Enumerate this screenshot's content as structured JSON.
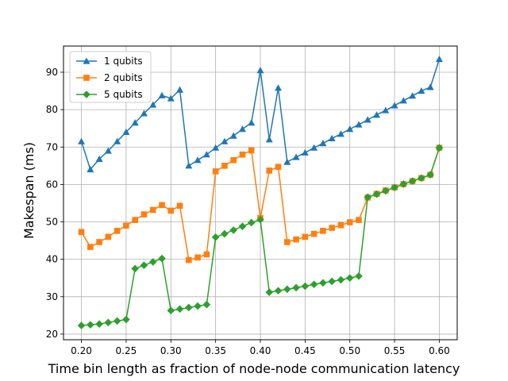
{
  "chart_data": {
    "type": "line",
    "title": "",
    "xlabel": "Time bin length as fraction of node-node communication latency",
    "ylabel": "Makespan (ms)",
    "xlim": [
      0.18,
      0.62
    ],
    "ylim": [
      18.5,
      97
    ],
    "xticks": [
      0.2,
      0.25,
      0.3,
      0.35,
      0.4,
      0.45,
      0.5,
      0.55,
      0.6
    ],
    "xtick_labels": [
      "0.20",
      "0.25",
      "0.30",
      "0.35",
      "0.40",
      "0.45",
      "0.50",
      "0.55",
      "0.60"
    ],
    "yticks": [
      20,
      30,
      40,
      50,
      60,
      70,
      80,
      90
    ],
    "ytick_labels": [
      "20",
      "30",
      "40",
      "50",
      "60",
      "70",
      "80",
      "90"
    ],
    "grid": true,
    "legend_position": "top-left",
    "x": [
      0.2,
      0.21,
      0.22,
      0.23,
      0.24,
      0.25,
      0.26,
      0.27,
      0.28,
      0.29,
      0.3,
      0.31,
      0.32,
      0.33,
      0.34,
      0.35,
      0.36,
      0.37,
      0.38,
      0.39,
      0.4,
      0.41,
      0.42,
      0.43,
      0.44,
      0.45,
      0.46,
      0.47,
      0.48,
      0.49,
      0.5,
      0.51,
      0.52,
      0.53,
      0.54,
      0.55,
      0.56,
      0.57,
      0.58,
      0.59,
      0.6
    ],
    "series": [
      {
        "name": "1 qubits",
        "color": "#1f77b4",
        "marker": "triangle",
        "values": [
          71.5,
          64.0,
          66.8,
          69.0,
          71.5,
          74.0,
          76.5,
          79.0,
          81.3,
          83.8,
          83.0,
          85.3,
          65.0,
          66.5,
          68.0,
          69.8,
          71.5,
          73.0,
          74.8,
          76.5,
          90.5,
          72.0,
          85.8,
          66.0,
          67.3,
          68.5,
          69.8,
          71.0,
          72.3,
          73.5,
          74.8,
          76.0,
          77.3,
          78.6,
          79.8,
          81.1,
          82.4,
          83.7,
          85.0,
          86.0,
          93.5
        ]
      },
      {
        "name": "2 qubits",
        "color": "#ff7f0e",
        "marker": "square",
        "values": [
          47.3,
          43.3,
          44.6,
          46.0,
          47.6,
          49.0,
          50.5,
          52.0,
          53.2,
          54.5,
          53.0,
          54.3,
          39.8,
          40.5,
          41.3,
          63.5,
          65.0,
          66.5,
          68.0,
          69.1,
          51.0,
          63.7,
          64.7,
          44.6,
          45.3,
          46.0,
          46.8,
          47.6,
          48.4,
          49.1,
          49.9,
          50.5,
          56.5,
          57.5,
          58.4,
          59.2,
          60.1,
          60.9,
          61.7,
          62.6,
          69.8
        ]
      },
      {
        "name": "5 qubits",
        "color": "#2ca02c",
        "marker": "diamond",
        "values": [
          22.3,
          22.5,
          22.7,
          23.1,
          23.5,
          23.9,
          37.5,
          38.4,
          39.3,
          40.2,
          26.3,
          26.7,
          27.1,
          27.5,
          27.9,
          45.9,
          46.8,
          47.8,
          48.8,
          49.8,
          50.6,
          31.2,
          31.6,
          32.0,
          32.4,
          32.8,
          33.3,
          33.7,
          34.1,
          34.5,
          35.0,
          35.5,
          56.6,
          57.4,
          58.3,
          59.2,
          60.1,
          60.9,
          61.7,
          62.6,
          69.8
        ]
      }
    ]
  }
}
